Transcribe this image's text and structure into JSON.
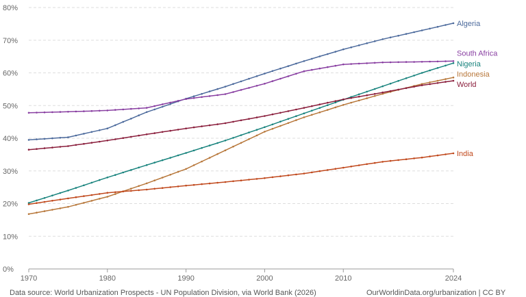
{
  "chart_data": {
    "type": "line",
    "title": "",
    "xlabel": "",
    "ylabel": "",
    "x_ticks": [
      "1970",
      "1980",
      "1990",
      "2000",
      "2010",
      "2024"
    ],
    "y_ticks": [
      "0%",
      "10%",
      "20%",
      "30%",
      "40%",
      "50%",
      "60%",
      "70%",
      "80%"
    ],
    "xlim": [
      1970,
      2024
    ],
    "ylim": [
      0,
      80
    ],
    "grid": true,
    "x": [
      1970,
      1975,
      1980,
      1985,
      1990,
      1995,
      2000,
      2005,
      2010,
      2015,
      2020,
      2024
    ],
    "series": [
      {
        "name": "Algeria",
        "color": "#4c6a9c",
        "values": [
          39.5,
          40.3,
          43.0,
          48.0,
          52.1,
          55.8,
          59.8,
          63.6,
          67.2,
          70.3,
          73.0,
          75.2
        ]
      },
      {
        "name": "South Africa",
        "color": "#883ea1",
        "values": [
          47.8,
          48.1,
          48.5,
          49.3,
          52.0,
          53.5,
          56.7,
          60.5,
          62.6,
          63.2,
          63.4,
          63.6
        ]
      },
      {
        "name": "Nigeria",
        "color": "#18837d",
        "values": [
          20.2,
          24.0,
          28.0,
          31.8,
          35.5,
          39.3,
          43.4,
          47.6,
          51.8,
          55.9,
          60.0,
          63.0
        ]
      },
      {
        "name": "Indonesia",
        "color": "#b7773a",
        "values": [
          16.8,
          19.0,
          22.1,
          26.2,
          30.6,
          36.3,
          42.0,
          46.4,
          50.2,
          53.6,
          56.6,
          58.6
        ]
      },
      {
        "name": "World",
        "color": "#8a1e3c",
        "values": [
          36.5,
          37.6,
          39.3,
          41.2,
          43.0,
          44.6,
          46.8,
          49.3,
          51.9,
          54.0,
          56.2,
          57.6
        ]
      },
      {
        "name": "India",
        "color": "#c0481c",
        "values": [
          19.8,
          21.6,
          23.3,
          24.3,
          25.5,
          26.6,
          27.8,
          29.2,
          31.0,
          32.8,
          34.1,
          35.4
        ]
      }
    ]
  },
  "footer": {
    "source": "Data source: World Urbanization Prospects - UN Population Division, via World Bank (2026)",
    "credit": "OurWorldinData.org/urbanization | CC BY"
  }
}
